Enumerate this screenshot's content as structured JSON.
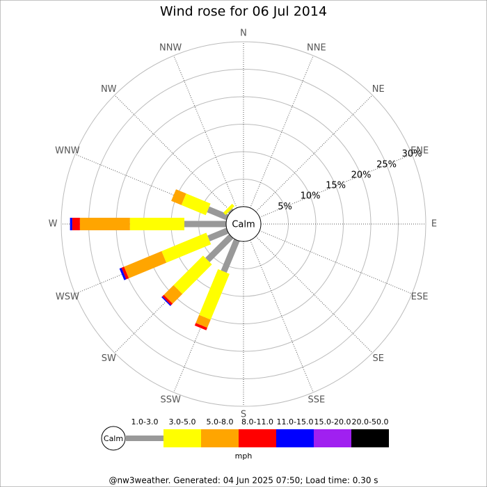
{
  "chart_data": {
    "type": "windrose",
    "title": "Wind rose for 06 Jul 2014",
    "calm_label": "Calm",
    "units": "mph",
    "footer": "@nw3weather. Generated: 04 Jun 2025 07:50; Load time: 0.30 s",
    "categories": [
      "N",
      "NNE",
      "NE",
      "ENE",
      "E",
      "ESE",
      "SE",
      "SSE",
      "S",
      "SSW",
      "SW",
      "WSW",
      "W",
      "WNW",
      "NW",
      "NNW"
    ],
    "rlim": [
      0,
      30
    ],
    "rticks": [
      {
        "value": 5,
        "label": "5%"
      },
      {
        "value": 10,
        "label": "10%"
      },
      {
        "value": 15,
        "label": "15%"
      },
      {
        "value": 20,
        "label": "20%"
      },
      {
        "value": 25,
        "label": "25%"
      },
      {
        "value": 30,
        "label": "30%"
      }
    ],
    "series": [
      {
        "name": "1.0-3.0",
        "color": "#999999",
        "values": [
          0,
          0,
          0,
          0,
          0,
          0,
          0,
          0,
          0,
          6.2,
          6.1,
          3.7,
          7.6,
          3.8,
          0.3,
          0
        ]
      },
      {
        "name": "3.0-5.0",
        "color": "#ffff00",
        "values": [
          0,
          0,
          0,
          0,
          0,
          0,
          0,
          0,
          0,
          9.0,
          7.6,
          8.8,
          9.9,
          4.8,
          0.6,
          0
        ]
      },
      {
        "name": "5.0-8.0",
        "color": "#ffa500",
        "values": [
          0,
          0,
          0,
          0,
          0,
          0,
          0,
          0,
          0,
          1.6,
          2.5,
          7.4,
          9.1,
          2.0,
          0,
          0
        ]
      },
      {
        "name": "8.0-11.0",
        "color": "#ff0000",
        "values": [
          0,
          0,
          0,
          0,
          0,
          0,
          0,
          0,
          0,
          0.5,
          0.4,
          0.5,
          1.4,
          0,
          0,
          0
        ]
      },
      {
        "name": "11.0-15.0",
        "color": "#0000ff",
        "values": [
          0,
          0,
          0,
          0,
          0,
          0,
          0,
          0,
          0,
          0,
          0.2,
          0.4,
          0.4,
          0,
          0,
          0
        ]
      },
      {
        "name": "15.0-20.0",
        "color": "#a020f0",
        "values": [
          0,
          0,
          0,
          0,
          0,
          0,
          0,
          0,
          0,
          0,
          0,
          0,
          0,
          0,
          0,
          0
        ]
      },
      {
        "name": "20.0-50.0",
        "color": "#000000",
        "values": [
          0,
          0,
          0,
          0,
          0,
          0,
          0,
          0,
          0,
          0,
          0,
          0,
          0,
          0,
          0,
          0
        ]
      }
    ]
  }
}
